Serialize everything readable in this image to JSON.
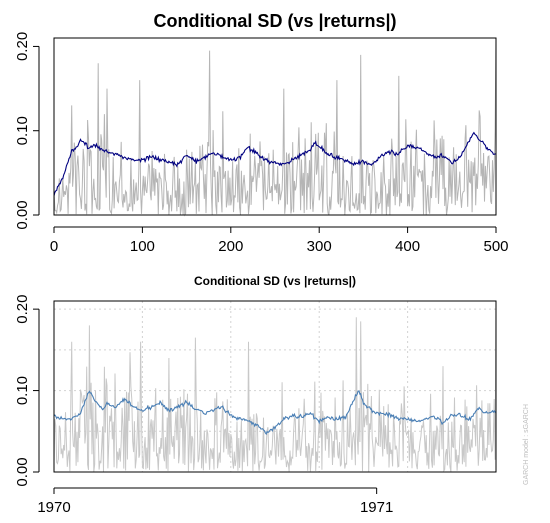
{
  "chart_data": [
    {
      "type": "line",
      "title": "Conditional SD (vs |returns|)",
      "xlabel": "",
      "ylabel": "",
      "xlim": [
        0,
        500
      ],
      "ylim": [
        0,
        0.21
      ],
      "x_ticks": [
        "0",
        "100",
        "200",
        "300",
        "400",
        "500"
      ],
      "y_ticks": [
        "0.00",
        "0.10",
        "0.20"
      ],
      "grid": false,
      "n": 501,
      "colors": {
        "abs_returns": "#b5b5b5",
        "sigma": "#000080"
      },
      "sigma_anchors": {
        "x": [
          0,
          5,
          10,
          15,
          20,
          25,
          30,
          35,
          40,
          45,
          50,
          55,
          60,
          70,
          80,
          90,
          100,
          110,
          120,
          130,
          140,
          150,
          160,
          170,
          180,
          190,
          200,
          210,
          220,
          230,
          240,
          250,
          260,
          270,
          280,
          290,
          295,
          300,
          310,
          320,
          330,
          340,
          350,
          360,
          370,
          380,
          390,
          400,
          410,
          420,
          430,
          440,
          450,
          460,
          470,
          475,
          480,
          490,
          500
        ],
        "y": [
          0.024,
          0.035,
          0.045,
          0.06,
          0.075,
          0.08,
          0.088,
          0.085,
          0.08,
          0.083,
          0.08,
          0.078,
          0.075,
          0.072,
          0.068,
          0.065,
          0.065,
          0.07,
          0.065,
          0.063,
          0.06,
          0.072,
          0.063,
          0.068,
          0.075,
          0.07,
          0.065,
          0.068,
          0.08,
          0.072,
          0.065,
          0.062,
          0.06,
          0.065,
          0.072,
          0.078,
          0.085,
          0.082,
          0.072,
          0.068,
          0.065,
          0.06,
          0.064,
          0.06,
          0.07,
          0.075,
          0.072,
          0.082,
          0.08,
          0.075,
          0.07,
          0.07,
          0.062,
          0.07,
          0.088,
          0.098,
          0.09,
          0.08,
          0.07
        ]
      },
      "abs_returns_peaks": {
        "x": [
          20,
          50,
          60,
          97,
          176,
          260,
          320,
          347,
          390,
          500
        ],
        "y": [
          0.13,
          0.18,
          0.15,
          0.16,
          0.195,
          0.15,
          0.16,
          0.19,
          0.165,
          0.21
        ]
      }
    },
    {
      "type": "line",
      "title": "Conditional SD (vs |returns|)",
      "xlabel": "",
      "ylabel": "",
      "xlim": [
        0,
        500
      ],
      "ylim": [
        0,
        0.21
      ],
      "x_ticks": [
        "1970",
        "1971"
      ],
      "x_tick_positions": [
        0,
        365
      ],
      "y_ticks": [
        "0.00",
        "0.10",
        "0.20"
      ],
      "grid": true,
      "side_label": "GARCH model : sGARCH",
      "n": 501,
      "colors": {
        "abs_returns": "#c8c8c8",
        "sigma": "#4a7fb5"
      },
      "sigma_anchors": {
        "x": [
          0,
          10,
          20,
          30,
          40,
          45,
          55,
          60,
          70,
          80,
          90,
          100,
          110,
          120,
          130,
          140,
          150,
          160,
          170,
          180,
          190,
          200,
          210,
          220,
          230,
          240,
          250,
          260,
          270,
          280,
          290,
          300,
          310,
          320,
          330,
          335,
          340,
          345,
          350,
          360,
          370,
          380,
          390,
          400,
          410,
          420,
          430,
          440,
          450,
          460,
          470,
          480,
          490,
          500
        ],
        "y": [
          0.068,
          0.065,
          0.065,
          0.072,
          0.1,
          0.09,
          0.078,
          0.085,
          0.08,
          0.09,
          0.08,
          0.075,
          0.08,
          0.085,
          0.075,
          0.08,
          0.085,
          0.078,
          0.072,
          0.075,
          0.08,
          0.07,
          0.065,
          0.063,
          0.058,
          0.048,
          0.055,
          0.065,
          0.07,
          0.068,
          0.072,
          0.062,
          0.068,
          0.065,
          0.068,
          0.08,
          0.09,
          0.1,
          0.085,
          0.075,
          0.072,
          0.07,
          0.065,
          0.065,
          0.062,
          0.065,
          0.068,
          0.06,
          0.07,
          0.07,
          0.065,
          0.078,
          0.072,
          0.075
        ]
      },
      "abs_returns_peaks": {
        "x": [
          20,
          40,
          98,
          130,
          160,
          220,
          342,
          347,
          440,
          500
        ],
        "y": [
          0.16,
          0.18,
          0.16,
          0.14,
          0.165,
          0.16,
          0.19,
          0.185,
          0.13,
          0.21
        ]
      }
    }
  ]
}
